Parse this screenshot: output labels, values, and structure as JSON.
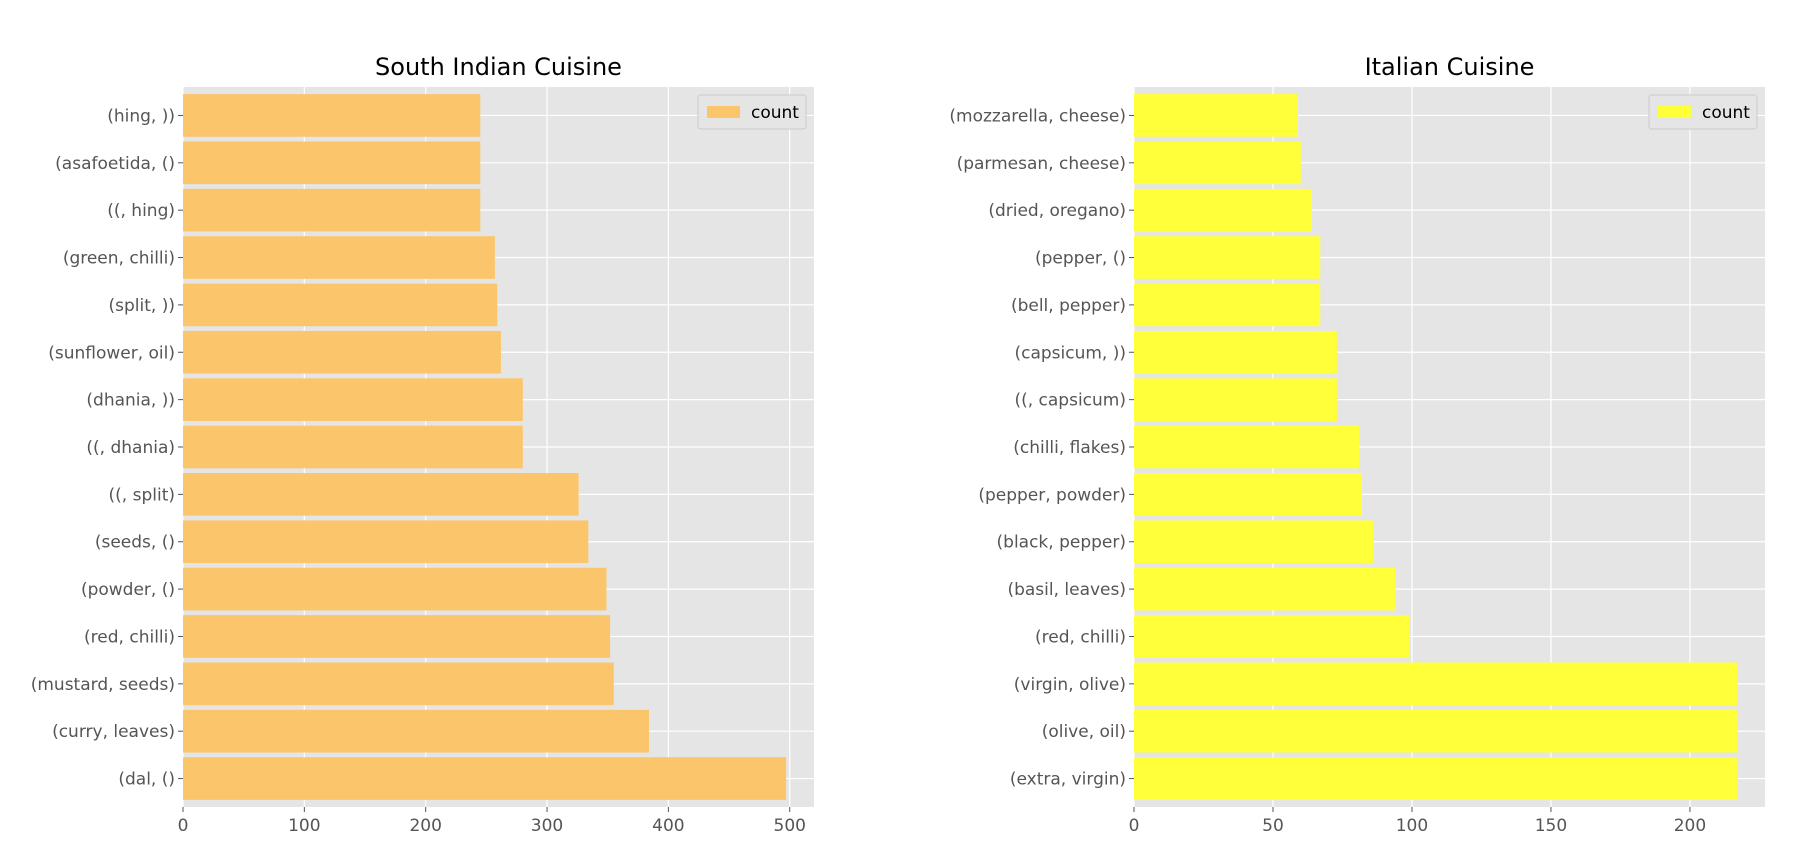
{
  "chart_data": [
    {
      "type": "bar",
      "orientation": "horizontal",
      "title": "South Indian Cuisine",
      "xlabel": "",
      "ylabel": "",
      "categories": [
        "(hing, ))",
        "(asafoetida, ()",
        "((, hing)",
        "(green, chilli)",
        "(split, ))",
        "(sunflower, oil)",
        "(dhania, ))",
        "((, dhania)",
        "((, split)",
        "(seeds, ()",
        "(powder, ()",
        "(red, chilli)",
        "(mustard, seeds)",
        "(curry, leaves)",
        "(dal, ()"
      ],
      "series": [
        {
          "name": "count",
          "values": [
            245,
            245,
            245,
            257,
            259,
            262,
            280,
            280,
            326,
            334,
            349,
            352,
            355,
            384,
            497
          ]
        }
      ],
      "xlim": [
        0,
        520
      ],
      "xticks": [
        0,
        100,
        200,
        300,
        400,
        500
      ],
      "grid": true,
      "legend_position": "top-right",
      "color": "#fbc56b"
    },
    {
      "type": "bar",
      "orientation": "horizontal",
      "title": "Italian Cuisine",
      "xlabel": "",
      "ylabel": "",
      "categories": [
        "(mozzarella, cheese)",
        "(parmesan, cheese)",
        "(dried, oregano)",
        "(pepper, ()",
        "(bell, pepper)",
        "(capsicum, ))",
        "((, capsicum)",
        "(chilli, flakes)",
        "(pepper, powder)",
        "(black, pepper)",
        "(basil, leaves)",
        "(red, chilli)",
        "(virgin, olive)",
        "(olive, oil)",
        "(extra, virgin)"
      ],
      "series": [
        {
          "name": "count",
          "values": [
            59,
            60,
            64,
            67,
            67,
            73,
            73,
            81,
            82,
            86,
            94,
            99,
            217,
            217,
            217
          ]
        }
      ],
      "xlim": [
        0,
        227
      ],
      "xticks": [
        0,
        50,
        100,
        150,
        200
      ],
      "grid": true,
      "legend_position": "top-right",
      "color": "#ffff3a"
    }
  ]
}
